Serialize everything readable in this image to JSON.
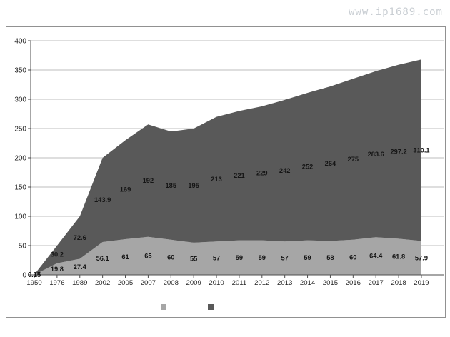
{
  "watermark": "www.ip1689.com",
  "chart_data": {
    "type": "area",
    "subtype": "stacked",
    "title": "",
    "xlabel": "",
    "ylabel": "",
    "categories": [
      "1950",
      "1976",
      "1989",
      "2002",
      "2005",
      "2007",
      "2008",
      "2009",
      "2010",
      "2011",
      "2012",
      "2013",
      "2014",
      "2015",
      "2016",
      "2017",
      "2018",
      "2019"
    ],
    "series": [
      {
        "name": "",
        "color": "#a6a6a6",
        "values": [
          0.15,
          19.8,
          27.4,
          56.1,
          61,
          65,
          60,
          55,
          57,
          59,
          59,
          57,
          59,
          58,
          60,
          64.4,
          61.8,
          57.9
        ]
      },
      {
        "name": "",
        "color": "#595959",
        "values": [
          0.35,
          30.2,
          72.6,
          143.9,
          169,
          192,
          185,
          195,
          213,
          221,
          229,
          242,
          252,
          264,
          275,
          283.6,
          297.2,
          310.1
        ]
      }
    ],
    "ylim": [
      0,
      400
    ],
    "ytick_interval": 50,
    "yticks": [
      "0",
      "50",
      "100",
      "150",
      "200",
      "250",
      "300",
      "350",
      "400"
    ],
    "grid": "horizontal",
    "data_labels": "centered-in-band",
    "legend_position": "bottom",
    "legend": [
      {
        "label": "",
        "color": "#a6a6a6"
      },
      {
        "label": "",
        "color": "#595959"
      }
    ],
    "colors": {
      "gridline": "#bdbdbd",
      "axis": "#4d4d4d",
      "frame_border": "#919191",
      "watermark": "#c9ced3"
    }
  }
}
